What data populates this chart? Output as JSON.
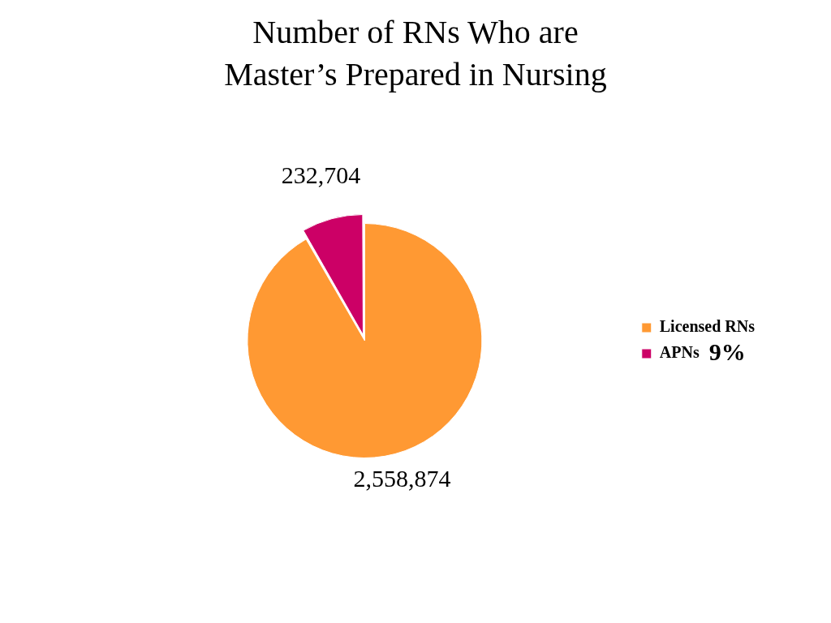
{
  "chart_data": {
    "type": "pie",
    "title": "Number of RNs Who are\nMaster’s Prepared in Nursing",
    "categories": [
      "Licensed RNs",
      "APNs"
    ],
    "values": [
      2558874,
      232704
    ],
    "colors": [
      "#ff9933",
      "#cc0066"
    ],
    "value_labels": [
      "2,558,874",
      "232,704"
    ],
    "legend": "right",
    "annotations": [
      {
        "text": "9%",
        "x": "APNs"
      }
    ]
  }
}
